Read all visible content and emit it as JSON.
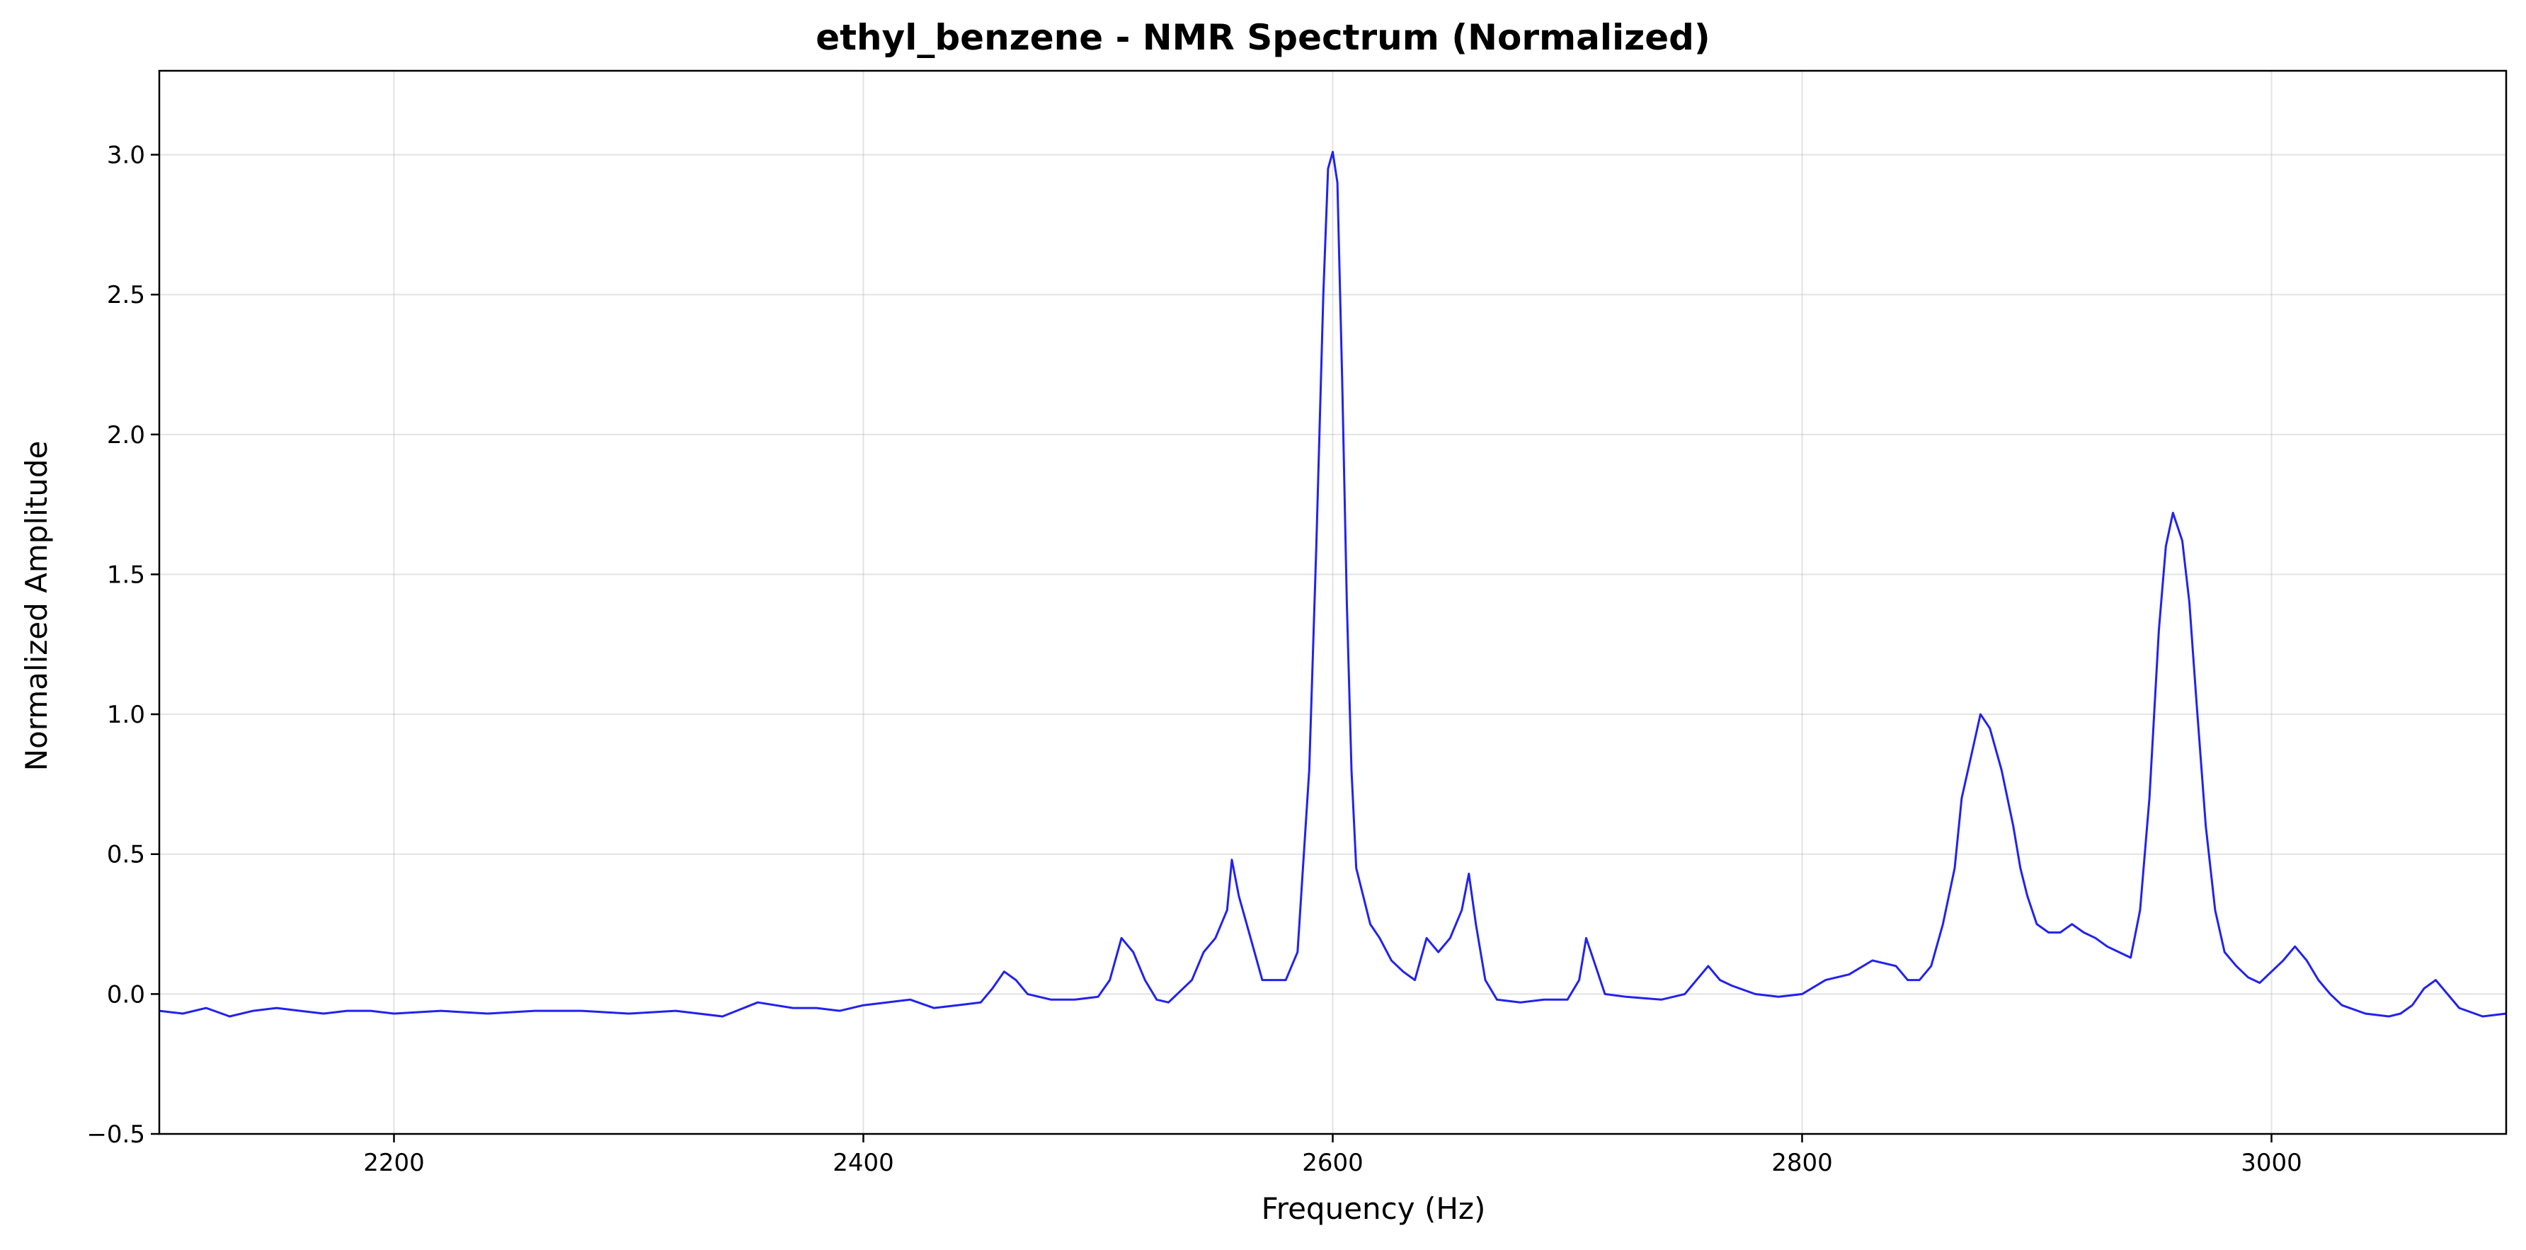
{
  "chart_data": {
    "type": "line",
    "title": "ethyl_benzene - NMR Spectrum (Normalized)",
    "xlabel": "Frequency (Hz)",
    "ylabel": "Normalized Amplitude",
    "xlim": [
      2100,
      3100
    ],
    "ylim": [
      -0.5,
      3.3
    ],
    "xticks": [
      2200,
      2400,
      2600,
      2800,
      3000
    ],
    "yticks": [
      -0.5,
      0.0,
      0.5,
      1.0,
      1.5,
      2.0,
      2.5,
      3.0
    ],
    "ytick_labels": [
      "−0.5",
      "0.0",
      "0.5",
      "1.0",
      "1.5",
      "2.0",
      "2.5",
      "3.0"
    ],
    "grid": true,
    "line_color": "#2222ee",
    "series": [
      {
        "x": [
          2100,
          2110,
          2120,
          2130,
          2140,
          2150,
          2160,
          2170,
          2180,
          2190,
          2200,
          2220,
          2240,
          2260,
          2280,
          2300,
          2320,
          2340,
          2355,
          2370,
          2380,
          2390,
          2400,
          2410,
          2420,
          2430,
          2440,
          2450,
          2455,
          2460,
          2465,
          2470,
          2480,
          2490,
          2500,
          2505,
          2510,
          2515,
          2520,
          2525,
          2530,
          2540,
          2545,
          2550,
          2555,
          2557,
          2560,
          2565,
          2570,
          2575,
          2580,
          2585,
          2590,
          2593,
          2596,
          2598,
          2600,
          2602,
          2604,
          2606,
          2608,
          2610,
          2613,
          2616,
          2620,
          2625,
          2630,
          2635,
          2640,
          2645,
          2650,
          2655,
          2658,
          2661,
          2665,
          2670,
          2680,
          2690,
          2700,
          2705,
          2708,
          2712,
          2716,
          2725,
          2740,
          2750,
          2760,
          2765,
          2770,
          2780,
          2790,
          2800,
          2810,
          2820,
          2830,
          2840,
          2845,
          2850,
          2855,
          2860,
          2865,
          2868,
          2872,
          2876,
          2880,
          2885,
          2890,
          2893,
          2896,
          2900,
          2905,
          2910,
          2915,
          2920,
          2925,
          2930,
          2935,
          2940,
          2944,
          2948,
          2952,
          2955,
          2958,
          2962,
          2965,
          2968,
          2972,
          2976,
          2980,
          2985,
          2990,
          2995,
          3000,
          3005,
          3010,
          3015,
          3020,
          3025,
          3030,
          3040,
          3050,
          3055,
          3060,
          3065,
          3070,
          3075,
          3080,
          3090,
          3100
        ],
        "y": [
          -0.06,
          -0.07,
          -0.05,
          -0.08,
          -0.06,
          -0.05,
          -0.06,
          -0.07,
          -0.06,
          -0.06,
          -0.07,
          -0.06,
          -0.07,
          -0.06,
          -0.06,
          -0.07,
          -0.06,
          -0.08,
          -0.03,
          -0.05,
          -0.05,
          -0.06,
          -0.04,
          -0.03,
          -0.02,
          -0.05,
          -0.04,
          -0.03,
          0.02,
          0.08,
          0.05,
          0.0,
          -0.02,
          -0.02,
          -0.01,
          0.05,
          0.2,
          0.15,
          0.05,
          -0.02,
          -0.03,
          0.05,
          0.15,
          0.2,
          0.3,
          0.48,
          0.35,
          0.2,
          0.05,
          0.05,
          0.05,
          0.15,
          0.8,
          1.6,
          2.5,
          2.95,
          3.01,
          2.9,
          2.2,
          1.4,
          0.8,
          0.45,
          0.35,
          0.25,
          0.2,
          0.12,
          0.08,
          0.05,
          0.2,
          0.15,
          0.2,
          0.3,
          0.43,
          0.25,
          0.05,
          -0.02,
          -0.03,
          -0.02,
          -0.02,
          0.05,
          0.2,
          0.1,
          0.0,
          -0.01,
          -0.02,
          0.0,
          0.1,
          0.05,
          0.03,
          0.0,
          -0.01,
          0.0,
          0.05,
          0.07,
          0.12,
          0.1,
          0.05,
          0.05,
          0.1,
          0.25,
          0.45,
          0.7,
          0.85,
          1.0,
          0.95,
          0.8,
          0.6,
          0.45,
          0.35,
          0.25,
          0.22,
          0.22,
          0.25,
          0.22,
          0.2,
          0.17,
          0.15,
          0.13,
          0.3,
          0.7,
          1.3,
          1.6,
          1.72,
          1.62,
          1.4,
          1.05,
          0.6,
          0.3,
          0.15,
          0.1,
          0.06,
          0.04,
          0.08,
          0.12,
          0.17,
          0.12,
          0.05,
          0.0,
          -0.04,
          -0.07,
          -0.08,
          -0.07,
          -0.04,
          0.02,
          0.05,
          0.0,
          -0.05,
          -0.08,
          -0.07
        ]
      }
    ]
  }
}
